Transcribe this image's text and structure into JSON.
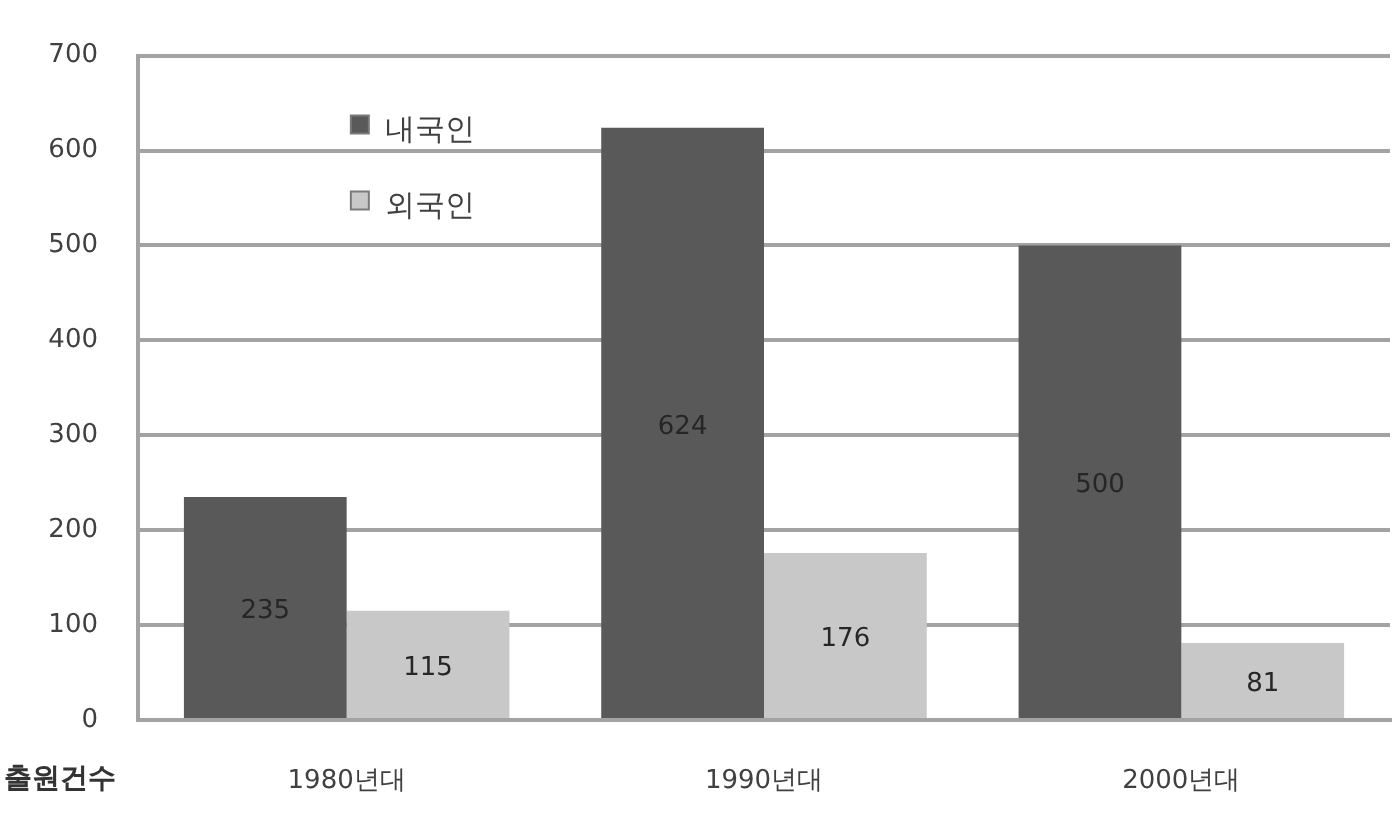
{
  "chart_data": {
    "type": "bar",
    "xlabel": "출원건수",
    "categories": [
      "1980년대",
      "1990년대",
      "2000년대"
    ],
    "series": [
      {
        "name": "내국인",
        "color": "#595959",
        "values": [
          235,
          624,
          500
        ]
      },
      {
        "name": "외국인",
        "color": "#c8c8c8",
        "values": [
          115,
          176,
          81
        ]
      }
    ],
    "ylim": [
      0,
      700
    ],
    "yticks": [
      0,
      100,
      200,
      300,
      400,
      500,
      600,
      700
    ],
    "grid": "y",
    "legend": "top left",
    "data_labels": true
  }
}
